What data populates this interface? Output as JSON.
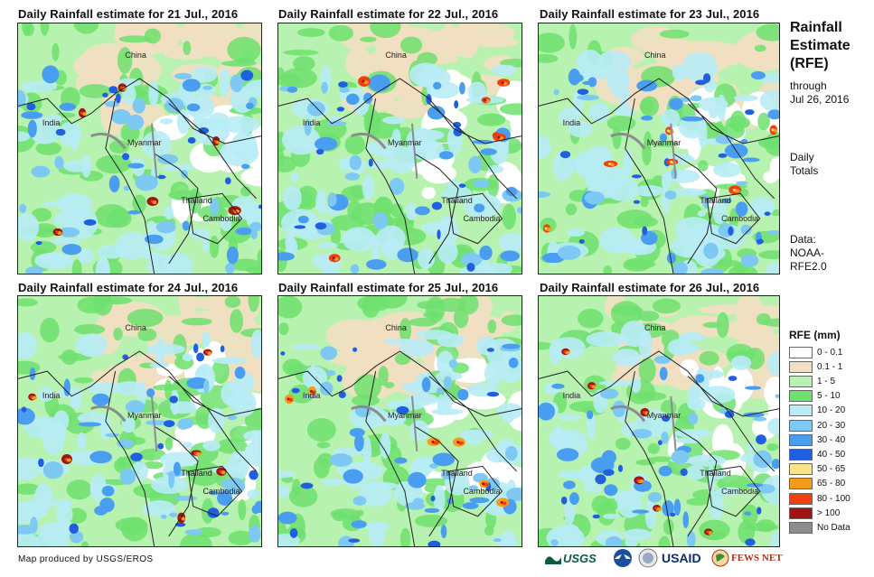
{
  "panels": [
    {
      "title": "Daily Rainfall estimate for 21 Jul., 2016"
    },
    {
      "title": "Daily Rainfall estimate for 22 Jul., 2016"
    },
    {
      "title": "Daily Rainfall estimate for 23 Jul., 2016"
    },
    {
      "title": "Daily Rainfall estimate for 24 Jul., 2016"
    },
    {
      "title": "Daily Rainfall estimate for 25 Jul., 2016"
    },
    {
      "title": "Daily Rainfall estimate for 26 Jul., 2016"
    }
  ],
  "map_labels": {
    "china": "China",
    "india": "India",
    "myanmar": "Myanmar",
    "thailand": "Thailand",
    "cambodia": "Cambodia"
  },
  "sidebar": {
    "title_line1": "Rainfall",
    "title_line2": "Estimate",
    "title_line3": "(RFE)",
    "through_line1": "through",
    "through_line2": "Jul 26, 2016",
    "totals_line1": "Daily",
    "totals_line2": "Totals",
    "data_line1": "Data:",
    "data_line2": "NOAA-",
    "data_line3": "RFE2.0"
  },
  "legend": {
    "title": "RFE (mm)",
    "items": [
      {
        "label": "0 - 0.1",
        "color": "#ffffff"
      },
      {
        "label": "0.1 - 1",
        "color": "#f2dfc2"
      },
      {
        "label": "1 - 5",
        "color": "#b8f2b0"
      },
      {
        "label": "5 - 10",
        "color": "#6ee06e"
      },
      {
        "label": "10 - 20",
        "color": "#b8ecf6"
      },
      {
        "label": "20 - 30",
        "color": "#7ec8f4"
      },
      {
        "label": "30 - 40",
        "color": "#4a9ef2"
      },
      {
        "label": "40 - 50",
        "color": "#1f5fe0"
      },
      {
        "label": "50 - 65",
        "color": "#fbe38a"
      },
      {
        "label": "65 - 80",
        "color": "#f79a1c"
      },
      {
        "label": "80 - 100",
        "color": "#f04010"
      },
      {
        "label": "> 100",
        "color": "#a01414"
      },
      {
        "label": "No Data",
        "color": "#8c8c8c"
      }
    ]
  },
  "footer": {
    "credit": "Map produced by USGS/EROS"
  },
  "logos": {
    "usgs": "USGS",
    "usaid": "USAID",
    "fewsnet": "FEWS NET"
  }
}
